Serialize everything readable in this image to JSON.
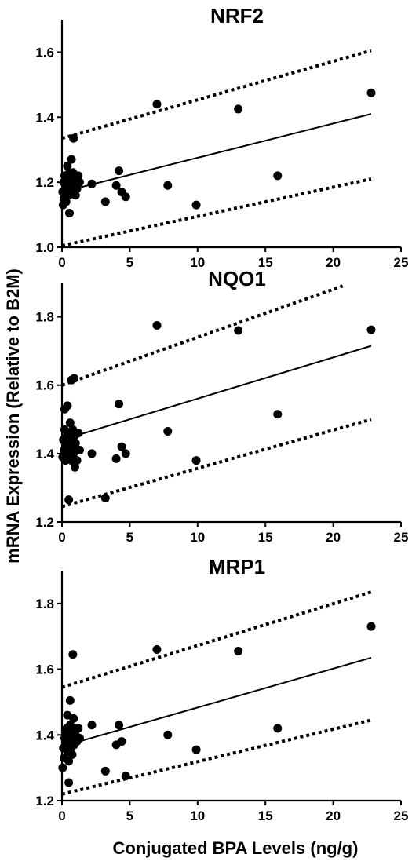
{
  "figure": {
    "ylabel": "mRNA Expression (Relative to B2M)",
    "xlabel": "Conjugated BPA Levels (ng/g)"
  },
  "chart_data": [
    {
      "type": "scatter",
      "title": "NRF2",
      "xlabel": "",
      "ylabel": "",
      "xlim": [
        0,
        25
      ],
      "ylim": [
        1.0,
        1.7
      ],
      "xticks": [
        0,
        5,
        10,
        15,
        20,
        25
      ],
      "yticks": [
        1.0,
        1.2,
        1.4,
        1.6
      ],
      "ytick_labels": [
        "1.0",
        "1.2",
        "1.4",
        "1.6"
      ],
      "grid": false,
      "points": [
        [
          0.05,
          1.17
        ],
        [
          0.08,
          1.13
        ],
        [
          0.12,
          1.2
        ],
        [
          0.15,
          1.15
        ],
        [
          0.2,
          1.22
        ],
        [
          0.25,
          1.18
        ],
        [
          0.3,
          1.14
        ],
        [
          0.35,
          1.21
        ],
        [
          0.4,
          1.25
        ],
        [
          0.45,
          1.19
        ],
        [
          0.5,
          1.16
        ],
        [
          0.55,
          1.23
        ],
        [
          0.6,
          1.21
        ],
        [
          0.65,
          1.18
        ],
        [
          0.7,
          1.27
        ],
        [
          0.75,
          1.2
        ],
        [
          0.8,
          1.23
        ],
        [
          0.85,
          1.17
        ],
        [
          0.9,
          1.19
        ],
        [
          0.95,
          1.21
        ],
        [
          1.0,
          1.16
        ],
        [
          1.05,
          1.2
        ],
        [
          1.1,
          1.18
        ],
        [
          1.2,
          1.22
        ],
        [
          1.3,
          1.2
        ],
        [
          0.55,
          1.105
        ],
        [
          0.85,
          1.335
        ],
        [
          2.2,
          1.195
        ],
        [
          3.2,
          1.14
        ],
        [
          4.0,
          1.19
        ],
        [
          4.2,
          1.235
        ],
        [
          4.4,
          1.17
        ],
        [
          4.7,
          1.155
        ],
        [
          7.0,
          1.44
        ],
        [
          7.8,
          1.19
        ],
        [
          9.9,
          1.13
        ],
        [
          13.0,
          1.425
        ],
        [
          15.9,
          1.22
        ],
        [
          22.8,
          1.475
        ]
      ],
      "fit_line": [
        [
          0,
          1.17
        ],
        [
          22.8,
          1.41
        ]
      ],
      "upper_band": [
        [
          0,
          1.335
        ],
        [
          22.8,
          1.605
        ]
      ],
      "lower_band": [
        [
          0,
          1.005
        ],
        [
          22.8,
          1.21
        ]
      ]
    },
    {
      "type": "scatter",
      "title": "NQO1",
      "xlabel": "",
      "ylabel": "",
      "xlim": [
        0,
        25
      ],
      "ylim": [
        1.2,
        1.9
      ],
      "xticks": [
        0,
        5,
        10,
        15,
        20,
        25
      ],
      "yticks": [
        1.2,
        1.4,
        1.6,
        1.8
      ],
      "ytick_labels": [
        "1.2",
        "1.4",
        "1.6",
        "1.8"
      ],
      "grid": false,
      "points": [
        [
          0.05,
          1.39
        ],
        [
          0.1,
          1.44
        ],
        [
          0.15,
          1.41
        ],
        [
          0.2,
          1.47
        ],
        [
          0.25,
          1.38
        ],
        [
          0.3,
          1.42
        ],
        [
          0.35,
          1.45
        ],
        [
          0.4,
          1.4
        ],
        [
          0.45,
          1.43
        ],
        [
          0.5,
          1.39
        ],
        [
          0.55,
          1.46
        ],
        [
          0.6,
          1.41
        ],
        [
          0.65,
          1.44
        ],
        [
          0.7,
          1.38
        ],
        [
          0.75,
          1.42
        ],
        [
          0.8,
          1.47
        ],
        [
          0.85,
          1.4
        ],
        [
          0.9,
          1.45
        ],
        [
          0.95,
          1.36
        ],
        [
          1.0,
          1.43
        ],
        [
          1.1,
          1.38
        ],
        [
          1.2,
          1.46
        ],
        [
          1.3,
          1.41
        ],
        [
          0.2,
          1.53
        ],
        [
          0.4,
          1.54
        ],
        [
          0.6,
          1.49
        ],
        [
          0.5,
          1.265
        ],
        [
          0.7,
          1.615
        ],
        [
          0.9,
          1.62
        ],
        [
          2.2,
          1.4
        ],
        [
          3.2,
          1.27
        ],
        [
          4.0,
          1.385
        ],
        [
          4.2,
          1.545
        ],
        [
          4.4,
          1.42
        ],
        [
          4.7,
          1.4
        ],
        [
          7.0,
          1.775
        ],
        [
          7.8,
          1.465
        ],
        [
          9.9,
          1.38
        ],
        [
          13.0,
          1.76
        ],
        [
          15.9,
          1.515
        ],
        [
          22.8,
          1.762
        ]
      ],
      "fit_line": [
        [
          0,
          1.44
        ],
        [
          22.8,
          1.715
        ]
      ],
      "upper_band": [
        [
          0,
          1.6
        ],
        [
          20.7,
          1.89
        ]
      ],
      "lower_band": [
        [
          0,
          1.245
        ],
        [
          22.8,
          1.5
        ]
      ]
    },
    {
      "type": "scatter",
      "title": "MRP1",
      "xlabel": "",
      "ylabel": "",
      "xlim": [
        0,
        25
      ],
      "ylim": [
        1.2,
        1.9
      ],
      "xticks": [
        0,
        5,
        10,
        15,
        20,
        25
      ],
      "yticks": [
        1.2,
        1.4,
        1.6,
        1.8
      ],
      "ytick_labels": [
        "1.2",
        "1.4",
        "1.6",
        "1.8"
      ],
      "grid": false,
      "points": [
        [
          0.05,
          1.3
        ],
        [
          0.1,
          1.36
        ],
        [
          0.15,
          1.33
        ],
        [
          0.2,
          1.39
        ],
        [
          0.25,
          1.41
        ],
        [
          0.3,
          1.37
        ],
        [
          0.35,
          1.42
        ],
        [
          0.4,
          1.35
        ],
        [
          0.45,
          1.4
        ],
        [
          0.5,
          1.32
        ],
        [
          0.55,
          1.38
        ],
        [
          0.6,
          1.43
        ],
        [
          0.65,
          1.36
        ],
        [
          0.7,
          1.41
        ],
        [
          0.75,
          1.34
        ],
        [
          0.8,
          1.39
        ],
        [
          0.85,
          1.45
        ],
        [
          0.9,
          1.37
        ],
        [
          0.95,
          1.42
        ],
        [
          1.0,
          1.4
        ],
        [
          1.1,
          1.38
        ],
        [
          1.2,
          1.42
        ],
        [
          1.3,
          1.39
        ],
        [
          0.4,
          1.46
        ],
        [
          0.6,
          1.505
        ],
        [
          0.5,
          1.255
        ],
        [
          0.8,
          1.645
        ],
        [
          2.2,
          1.43
        ],
        [
          3.2,
          1.29
        ],
        [
          4.0,
          1.37
        ],
        [
          4.2,
          1.43
        ],
        [
          4.4,
          1.38
        ],
        [
          4.7,
          1.275
        ],
        [
          7.0,
          1.66
        ],
        [
          7.8,
          1.4
        ],
        [
          9.9,
          1.355
        ],
        [
          13.0,
          1.655
        ],
        [
          15.9,
          1.42
        ],
        [
          22.8,
          1.73
        ]
      ],
      "fit_line": [
        [
          0,
          1.365
        ],
        [
          22.8,
          1.635
        ]
      ],
      "upper_band": [
        [
          0,
          1.545
        ],
        [
          22.8,
          1.835
        ]
      ],
      "lower_band": [
        [
          0,
          1.22
        ],
        [
          22.8,
          1.445
        ]
      ]
    }
  ]
}
